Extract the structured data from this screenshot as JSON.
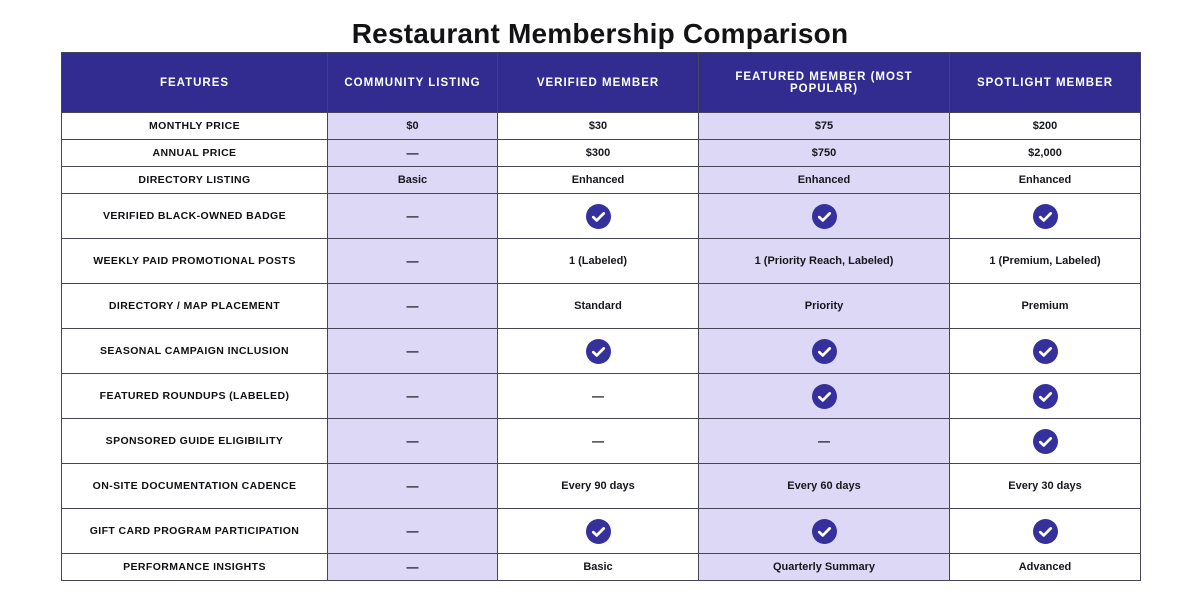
{
  "page": {
    "title": "Restaurant Membership Comparison"
  },
  "colors": {
    "header_bg": "#322b90",
    "highlight_bg": "#dcd8f6",
    "check": "#35309b",
    "border": "#46465a"
  },
  "icons": {
    "check": "check-circle-icon"
  },
  "chart_data": {
    "type": "table",
    "title": "Restaurant Membership Comparison",
    "columns": [
      {
        "label": "FEATURES",
        "highlight": false
      },
      {
        "label": "COMMUNITY LISTING",
        "highlight": true
      },
      {
        "label": "VERIFIED MEMBER",
        "highlight": false
      },
      {
        "label": "FEATURED MEMBER (MOST POPULAR)",
        "highlight": true
      },
      {
        "label": "SPOTLIGHT MEMBER",
        "highlight": false
      }
    ],
    "rows": [
      {
        "feature": "MONTHLY PRICE",
        "tall": false,
        "values": [
          "$0",
          "$30",
          "$75",
          "$200"
        ]
      },
      {
        "feature": "ANNUAL PRICE",
        "tall": false,
        "values": [
          "—",
          "$300",
          "$750",
          "$2,000"
        ]
      },
      {
        "feature": "DIRECTORY LISTING",
        "tall": false,
        "values": [
          "Basic",
          "Enhanced",
          "Enhanced",
          "Enhanced"
        ]
      },
      {
        "feature": "VERIFIED BLACK-OWNED BADGE",
        "tall": true,
        "values": [
          "—",
          "CHECK",
          "CHECK",
          "CHECK"
        ]
      },
      {
        "feature": "WEEKLY PAID PROMOTIONAL POSTS",
        "tall": true,
        "values": [
          "—",
          "1 (Labeled)",
          "1 (Priority Reach, Labeled)",
          "1 (Premium, Labeled)"
        ]
      },
      {
        "feature": "DIRECTORY / MAP PLACEMENT",
        "tall": true,
        "values": [
          "—",
          "Standard",
          "Priority",
          "Premium"
        ]
      },
      {
        "feature": "SEASONAL CAMPAIGN INCLUSION",
        "tall": true,
        "values": [
          "—",
          "CHECK",
          "CHECK",
          "CHECK"
        ]
      },
      {
        "feature": "FEATURED ROUNDUPS (LABELED)",
        "tall": true,
        "values": [
          "—",
          "—",
          "CHECK",
          "CHECK"
        ]
      },
      {
        "feature": "SPONSORED GUIDE ELIGIBILITY",
        "tall": true,
        "values": [
          "—",
          "—",
          "—",
          "CHECK"
        ]
      },
      {
        "feature": "ON-SITE DOCUMENTATION CADENCE",
        "tall": true,
        "values": [
          "—",
          "Every 90 days",
          "Every 60 days",
          "Every 30 days"
        ]
      },
      {
        "feature": "GIFT CARD PROGRAM PARTICIPATION",
        "tall": true,
        "values": [
          "—",
          "CHECK",
          "CHECK",
          "CHECK"
        ]
      },
      {
        "feature": "PERFORMANCE INSIGHTS",
        "tall": false,
        "values": [
          "—",
          "Basic",
          "Quarterly Summary",
          "Advanced"
        ]
      }
    ]
  }
}
